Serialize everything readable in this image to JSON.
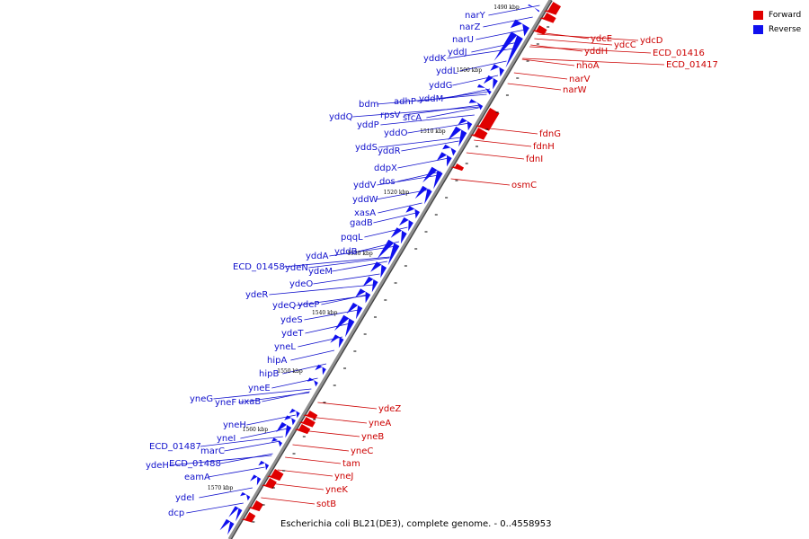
{
  "legend": {
    "forward_label": "Forward",
    "reverse_label": "Reverse",
    "forward_color": "#e00000",
    "reverse_color": "#1010ee"
  },
  "caption": "Escherichia coli BL21(DE3), complete genome. - 0..4558953",
  "colors": {
    "backbone": "#909090",
    "backbone_edge": "#444444",
    "forward_label": "#cc0000",
    "reverse_label": "#1010cc"
  },
  "kbp_ticks": [
    "1490 kbp",
    "1500 kbp",
    "1510 kbp",
    "1520 kbp",
    "1530 kbp",
    "1540 kbp",
    "1550 kbp",
    "1560 kbp",
    "1570 kbp"
  ],
  "reverse_genes": [
    "narY",
    "narZ",
    "narU",
    "yddJ",
    "yddK",
    "yddL",
    "yddG",
    "yddM",
    "adhP",
    "bdm",
    "rpsV",
    "sfcA",
    "yddQ",
    "yddP",
    "yddO",
    "yddS",
    "yddR",
    "ddpX",
    "dos",
    "yddV",
    "yddW",
    "xasA",
    "gadB",
    "pqqL",
    "yddB",
    "yddA",
    "ECD_01458",
    "ydeN",
    "ydeM",
    "ydeO",
    "ydeR",
    "ydeQ",
    "ydeP",
    "ydeS",
    "ydeT",
    "yneL",
    "hipA",
    "hipB",
    "yneE",
    "yneG",
    "yneF",
    "uxaB",
    "yneH",
    "yneI",
    "ECD_01487",
    "marC",
    "ydeH",
    "ECD_01488",
    "eamA",
    "ydeI",
    "dcp"
  ],
  "forward_genes": [
    "ydcE",
    "ydcD",
    "yddH",
    "ydcC",
    "ECD_01416",
    "ECD_01417",
    "nhoA",
    "narV",
    "narW",
    "fdnG",
    "fdnH",
    "fdnI",
    "osmC",
    "ydeZ",
    "yneA",
    "yneB",
    "yneC",
    "tam",
    "yneJ",
    "yneK",
    "sotB"
  ]
}
